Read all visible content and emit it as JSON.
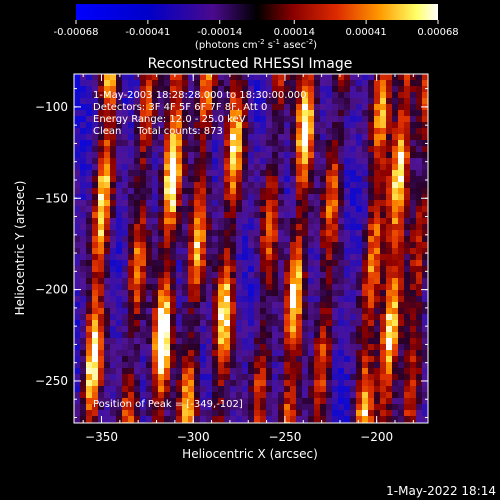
{
  "chart_data": {
    "type": "heatmap",
    "title": "Reconstructed RHESSI Image",
    "xlabel": "Heliocentric X (arcsec)",
    "ylabel": "Heliocentric Y (arcsec)",
    "xlim": [
      -365,
      -172
    ],
    "ylim": [
      -273,
      -82
    ],
    "x_ticks": [
      -350,
      -300,
      -250,
      -200
    ],
    "y_ticks": [
      -250,
      -200,
      -150,
      -100
    ],
    "colorbar": {
      "min": -0.00068,
      "max": 0.00068,
      "ticks": [
        "-0.00068",
        "-0.00041",
        "-0.00014",
        "0.00014",
        "0.00041",
        "0.00068"
      ],
      "units_prefix": "(photons cm",
      "units_exp1": "-2",
      "units_mid": " s",
      "units_exp2": "-1",
      "units_mid2": " asec",
      "units_exp3": "-2",
      "units_suffix": ")"
    },
    "annotations": [
      "1-May-2003 18:28:28.000 to 18:30:00.000",
      "Detectors: 3F 4F 5F 6F 7F 8F, Att 0",
      "Energy Range: 12.0 - 25.0 keV",
      "Clean     Total counts: 873"
    ],
    "peak_label": "Position of Peak = [-349,-102]",
    "peak_position": [
      -349,
      -102
    ],
    "bright_streak_x": [
      -351,
      -330,
      -314,
      -298,
      -281,
      -259,
      -243,
      -226,
      -202,
      -190,
      -177
    ],
    "bright_streak_strength": [
      0.9,
      0.6,
      0.95,
      0.7,
      0.8,
      0.55,
      0.85,
      0.6,
      0.75,
      0.9,
      0.55
    ],
    "grid": false
  },
  "footer": {
    "timestamp": "1-May-2022 18:14"
  }
}
